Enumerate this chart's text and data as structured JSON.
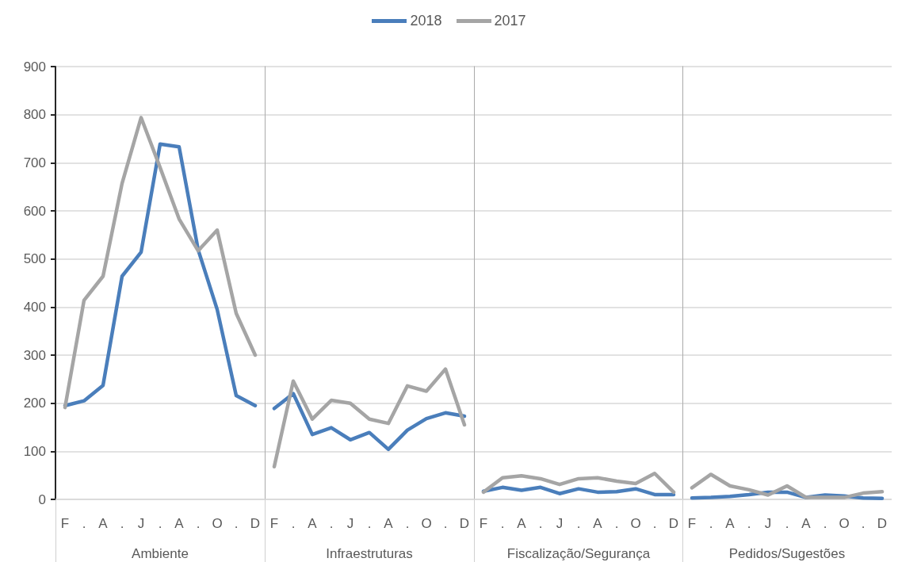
{
  "chart_data": [
    {
      "type": "line",
      "xlabel": "Ambiente",
      "categories": [
        "F",
        ".",
        "A",
        ".",
        "J",
        ".",
        "A",
        ".",
        "O",
        ".",
        "D"
      ],
      "legend": "top",
      "grid": "y",
      "marker": "none",
      "line_style": "solid",
      "ylim": [
        0,
        900
      ],
      "yticks": [
        0,
        100,
        200,
        300,
        400,
        500,
        600,
        700,
        800,
        900
      ],
      "series": [
        {
          "name": "2018",
          "color": "#4a7ebb",
          "values": [
            195,
            205,
            237,
            464,
            514,
            739,
            733,
            519,
            395,
            216,
            195
          ]
        },
        {
          "name": "2017",
          "color": "#a5a5a5",
          "values": [
            191,
            414,
            464,
            657,
            794,
            690,
            583,
            517,
            560,
            387,
            300
          ]
        }
      ]
    },
    {
      "type": "line",
      "xlabel": "Infraestruturas",
      "categories": [
        "F",
        ".",
        "A",
        ".",
        "J",
        ".",
        "A",
        ".",
        "O",
        ".",
        "D"
      ],
      "tick_labels": "x",
      "grid": "y",
      "marker": "none",
      "line_style": "solid",
      "ylim": [
        0,
        900
      ],
      "yticks": [
        0,
        100,
        200,
        300,
        400,
        500,
        600,
        700,
        800,
        900
      ],
      "series": [
        {
          "color": "#4a7ebb",
          "values": [
            189,
            220,
            135,
            149,
            124,
            139,
            104,
            144,
            168,
            180,
            173
          ]
        },
        {
          "color": "#a5a5a5",
          "values": [
            68,
            246,
            167,
            206,
            200,
            167,
            158,
            236,
            225,
            271,
            155
          ]
        }
      ]
    },
    {
      "type": "line",
      "xlabel": "Fiscalização/Segurança",
      "categories": [
        "F",
        ".",
        "A",
        ".",
        "J",
        ".",
        "A",
        ".",
        "O",
        ".",
        "D"
      ],
      "tick_labels": "x",
      "grid": "y",
      "marker": "none",
      "line_style": "solid",
      "ylim": [
        0,
        900
      ],
      "yticks": [
        0,
        100,
        200,
        300,
        400,
        500,
        600,
        700,
        800,
        900
      ],
      "series": [
        {
          "color": "#4a7ebb",
          "values": [
            17,
            25,
            19,
            25,
            12,
            22,
            15,
            16,
            22,
            10,
            10
          ]
        },
        {
          "color": "#a5a5a5",
          "values": [
            15,
            45,
            49,
            43,
            31,
            43,
            45,
            38,
            33,
            54,
            15
          ]
        }
      ]
    },
    {
      "type": "line",
      "xlabel": "Pedidos/Sugestões",
      "categories": [
        "F",
        ".",
        "A",
        ".",
        "J",
        ".",
        "A",
        ".",
        "O",
        ".",
        "D"
      ],
      "tick_labels": "x",
      "grid": "y",
      "marker": "none",
      "line_style": "solid",
      "ylim": [
        0,
        900
      ],
      "yticks": [
        0,
        100,
        200,
        300,
        400,
        500,
        600,
        700,
        800,
        900
      ],
      "series": [
        {
          "color": "#4a7ebb",
          "values": [
            3,
            4,
            6,
            10,
            15,
            15,
            4,
            9,
            7,
            3,
            2
          ]
        },
        {
          "color": "#a5a5a5",
          "values": [
            24,
            52,
            28,
            20,
            9,
            28,
            4,
            4,
            4,
            13,
            16
          ]
        }
      ]
    }
  ]
}
